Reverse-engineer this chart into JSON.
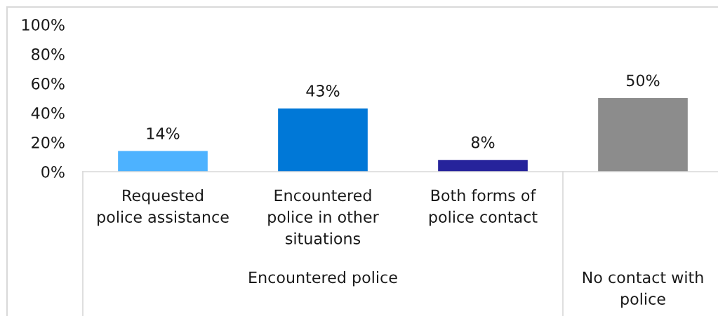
{
  "chart_data": {
    "type": "bar",
    "categories": [
      "Requested police assistance",
      "Encountered police in other situations",
      "Both forms of police contact",
      null
    ],
    "values": [
      14,
      43,
      8,
      50
    ],
    "colors": [
      "#4db2ff",
      "#0078d7",
      "#26239b",
      "#8c8c8c"
    ],
    "value_labels": [
      "14%",
      "43%",
      "8%",
      "50%"
    ],
    "ylim": [
      0,
      100
    ],
    "yticks": [
      {
        "value": 0,
        "label": "0%"
      },
      {
        "value": 20,
        "label": "20%"
      },
      {
        "value": 40,
        "label": "40%"
      },
      {
        "value": 60,
        "label": "60%"
      },
      {
        "value": 80,
        "label": "80%"
      },
      {
        "value": 100,
        "label": "100%"
      }
    ],
    "grid": false,
    "annotations": [
      "Encountered police",
      "No contact with police"
    ]
  }
}
